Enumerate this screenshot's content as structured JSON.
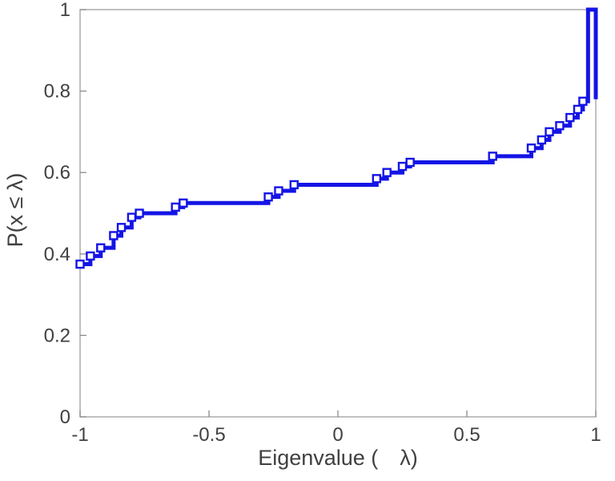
{
  "chart_data": {
    "type": "line",
    "subtype": "empirical-cdf-stairs",
    "title": "",
    "xlabel": "Eigenvalue (  λ)",
    "ylabel": "P(x ≤ λ)",
    "xlim": [
      -1,
      1
    ],
    "ylim": [
      0,
      1
    ],
    "grid": false,
    "legend_position": "none",
    "xticks": [
      -1,
      -0.5,
      0,
      0.5,
      1
    ],
    "xtick_labels": [
      "-1",
      "-0.5",
      "0",
      "0.5",
      "1"
    ],
    "yticks": [
      0,
      0.2,
      0.4,
      0.6,
      0.8,
      1
    ],
    "ytick_labels": [
      "0",
      "0.2",
      "0.4",
      "0.6",
      "0.8",
      "1"
    ],
    "line_color": "#1414e6",
    "line_width": 5,
    "marker": "open-square",
    "marker_fill": "#ffffff",
    "marker_size": 9,
    "axis_box_color": "#9e9e9e",
    "tick_mark_color": "#8a8a8a",
    "points": [
      [
        -1.0,
        0.375
      ],
      [
        -0.96,
        0.395
      ],
      [
        -0.92,
        0.415
      ],
      [
        -0.87,
        0.445
      ],
      [
        -0.84,
        0.465
      ],
      [
        -0.8,
        0.49
      ],
      [
        -0.77,
        0.5
      ],
      [
        -0.63,
        0.515
      ],
      [
        -0.6,
        0.525
      ],
      [
        -0.27,
        0.54
      ],
      [
        -0.23,
        0.555
      ],
      [
        -0.17,
        0.57
      ],
      [
        0.15,
        0.585
      ],
      [
        0.19,
        0.6
      ],
      [
        0.25,
        0.615
      ],
      [
        0.28,
        0.625
      ],
      [
        0.6,
        0.64
      ],
      [
        0.75,
        0.66
      ],
      [
        0.79,
        0.68
      ],
      [
        0.82,
        0.7
      ],
      [
        0.86,
        0.715
      ],
      [
        0.9,
        0.735
      ],
      [
        0.93,
        0.755
      ],
      [
        0.95,
        0.775
      ],
      [
        0.97,
        1.0
      ]
    ],
    "closing_segment": {
      "x": 1.0,
      "y_top": 1.0,
      "y_bottom": 0.78
    }
  }
}
